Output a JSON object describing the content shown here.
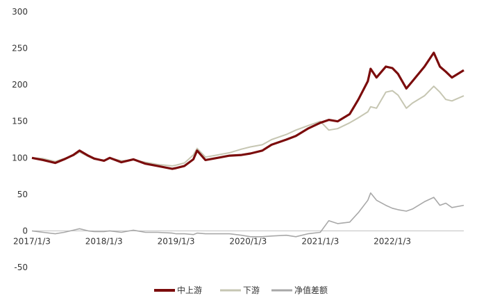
{
  "chart_data": {
    "type": "line",
    "title": "",
    "xlabel": "",
    "ylabel": "",
    "ylim": [
      -50,
      300
    ],
    "y_ticks": [
      -50,
      0,
      50,
      100,
      150,
      200,
      250,
      300
    ],
    "x_range": [
      "2017-01-03",
      "2022-12-31"
    ],
    "x_ticks": [
      "2017/1/3",
      "2018/1/3",
      "2019/1/3",
      "2020/1/3",
      "2021/1/3",
      "2022/1/3"
    ],
    "grid": false,
    "legend": "bottom",
    "series": [
      {
        "name": "中上游",
        "color": "#7b0c0c",
        "points": [
          [
            "2017-01-03",
            100
          ],
          [
            "2017-03-01",
            97
          ],
          [
            "2017-05-01",
            93
          ],
          [
            "2017-06-15",
            98
          ],
          [
            "2017-08-01",
            104
          ],
          [
            "2017-09-01",
            110
          ],
          [
            "2017-10-15",
            103
          ],
          [
            "2017-11-15",
            99
          ],
          [
            "2018-01-03",
            96
          ],
          [
            "2018-02-01",
            100
          ],
          [
            "2018-04-01",
            94
          ],
          [
            "2018-06-01",
            98
          ],
          [
            "2018-08-01",
            92
          ],
          [
            "2018-10-01",
            89
          ],
          [
            "2018-12-15",
            85
          ],
          [
            "2019-01-03",
            86
          ],
          [
            "2019-02-15",
            89
          ],
          [
            "2019-04-01",
            98
          ],
          [
            "2019-04-20",
            110
          ],
          [
            "2019-06-01",
            97
          ],
          [
            "2019-08-01",
            100
          ],
          [
            "2019-10-01",
            103
          ],
          [
            "2019-12-01",
            104
          ],
          [
            "2020-01-15",
            106
          ],
          [
            "2020-03-15",
            110
          ],
          [
            "2020-05-01",
            118
          ],
          [
            "2020-07-15",
            125
          ],
          [
            "2020-09-01",
            130
          ],
          [
            "2020-11-01",
            140
          ],
          [
            "2021-01-03",
            148
          ],
          [
            "2021-02-15",
            152
          ],
          [
            "2021-04-01",
            150
          ],
          [
            "2021-06-01",
            160
          ],
          [
            "2021-07-15",
            180
          ],
          [
            "2021-09-01",
            205
          ],
          [
            "2021-09-15",
            222
          ],
          [
            "2021-10-15",
            210
          ],
          [
            "2021-12-01",
            225
          ],
          [
            "2022-01-03",
            223
          ],
          [
            "2022-02-01",
            215
          ],
          [
            "2022-03-15",
            195
          ],
          [
            "2022-04-15",
            205
          ],
          [
            "2022-06-15",
            225
          ],
          [
            "2022-08-01",
            244
          ],
          [
            "2022-09-01",
            225
          ],
          [
            "2022-10-01",
            218
          ],
          [
            "2022-11-01",
            210
          ],
          [
            "2022-12-31",
            220
          ]
        ]
      },
      {
        "name": "下游",
        "color": "#c6c6b2",
        "points": [
          [
            "2017-01-03",
            100
          ],
          [
            "2017-03-01",
            99
          ],
          [
            "2017-05-01",
            95
          ],
          [
            "2017-06-15",
            99
          ],
          [
            "2017-08-01",
            103
          ],
          [
            "2017-09-01",
            108
          ],
          [
            "2017-10-15",
            102
          ],
          [
            "2017-11-15",
            98
          ],
          [
            "2018-01-03",
            97
          ],
          [
            "2018-02-01",
            100
          ],
          [
            "2018-04-01",
            96
          ],
          [
            "2018-06-01",
            97
          ],
          [
            "2018-08-01",
            94
          ],
          [
            "2018-10-01",
            91
          ],
          [
            "2018-12-15",
            89
          ],
          [
            "2019-01-03",
            90
          ],
          [
            "2019-02-15",
            93
          ],
          [
            "2019-04-01",
            104
          ],
          [
            "2019-04-20",
            113
          ],
          [
            "2019-06-01",
            101
          ],
          [
            "2019-08-01",
            104
          ],
          [
            "2019-10-01",
            107
          ],
          [
            "2019-12-01",
            112
          ],
          [
            "2020-01-15",
            115
          ],
          [
            "2020-03-15",
            118
          ],
          [
            "2020-05-01",
            125
          ],
          [
            "2020-07-15",
            132
          ],
          [
            "2020-09-01",
            138
          ],
          [
            "2020-11-01",
            144
          ],
          [
            "2021-01-03",
            150
          ],
          [
            "2021-02-15",
            138
          ],
          [
            "2021-04-01",
            140
          ],
          [
            "2021-06-01",
            148
          ],
          [
            "2021-07-15",
            155
          ],
          [
            "2021-09-01",
            163
          ],
          [
            "2021-09-15",
            170
          ],
          [
            "2021-10-15",
            168
          ],
          [
            "2021-12-01",
            190
          ],
          [
            "2022-01-03",
            192
          ],
          [
            "2022-02-01",
            186
          ],
          [
            "2022-03-15",
            168
          ],
          [
            "2022-04-15",
            175
          ],
          [
            "2022-06-15",
            185
          ],
          [
            "2022-08-01",
            198
          ],
          [
            "2022-09-01",
            190
          ],
          [
            "2022-10-01",
            180
          ],
          [
            "2022-11-01",
            178
          ],
          [
            "2022-12-31",
            185
          ]
        ]
      },
      {
        "name": "净值差额",
        "color": "#a8a8a8",
        "points": [
          [
            "2017-01-03",
            0
          ],
          [
            "2017-03-01",
            -2
          ],
          [
            "2017-05-01",
            -4
          ],
          [
            "2017-06-15",
            -2
          ],
          [
            "2017-08-01",
            1
          ],
          [
            "2017-09-01",
            3
          ],
          [
            "2017-10-15",
            0
          ],
          [
            "2017-11-15",
            -1
          ],
          [
            "2018-01-03",
            -1
          ],
          [
            "2018-02-01",
            0
          ],
          [
            "2018-04-01",
            -2
          ],
          [
            "2018-06-01",
            1
          ],
          [
            "2018-08-01",
            -2
          ],
          [
            "2018-10-01",
            -2
          ],
          [
            "2018-12-15",
            -3
          ],
          [
            "2019-01-03",
            -4
          ],
          [
            "2019-02-15",
            -4
          ],
          [
            "2019-04-01",
            -5
          ],
          [
            "2019-04-20",
            -3
          ],
          [
            "2019-06-01",
            -4
          ],
          [
            "2019-08-01",
            -4
          ],
          [
            "2019-10-01",
            -4
          ],
          [
            "2019-12-01",
            -6
          ],
          [
            "2020-01-15",
            -8
          ],
          [
            "2020-03-15",
            -8
          ],
          [
            "2020-05-01",
            -7
          ],
          [
            "2020-07-15",
            -6
          ],
          [
            "2020-09-01",
            -8
          ],
          [
            "2020-11-01",
            -4
          ],
          [
            "2021-01-03",
            -2
          ],
          [
            "2021-02-15",
            14
          ],
          [
            "2021-04-01",
            10
          ],
          [
            "2021-06-01",
            12
          ],
          [
            "2021-07-15",
            25
          ],
          [
            "2021-09-01",
            42
          ],
          [
            "2021-09-15",
            52
          ],
          [
            "2021-10-15",
            42
          ],
          [
            "2021-12-01",
            35
          ],
          [
            "2022-01-03",
            31
          ],
          [
            "2022-02-01",
            29
          ],
          [
            "2022-03-15",
            27
          ],
          [
            "2022-04-15",
            30
          ],
          [
            "2022-06-15",
            40
          ],
          [
            "2022-08-01",
            46
          ],
          [
            "2022-09-01",
            35
          ],
          [
            "2022-10-01",
            38
          ],
          [
            "2022-11-01",
            32
          ],
          [
            "2022-12-31",
            35
          ]
        ]
      }
    ]
  }
}
